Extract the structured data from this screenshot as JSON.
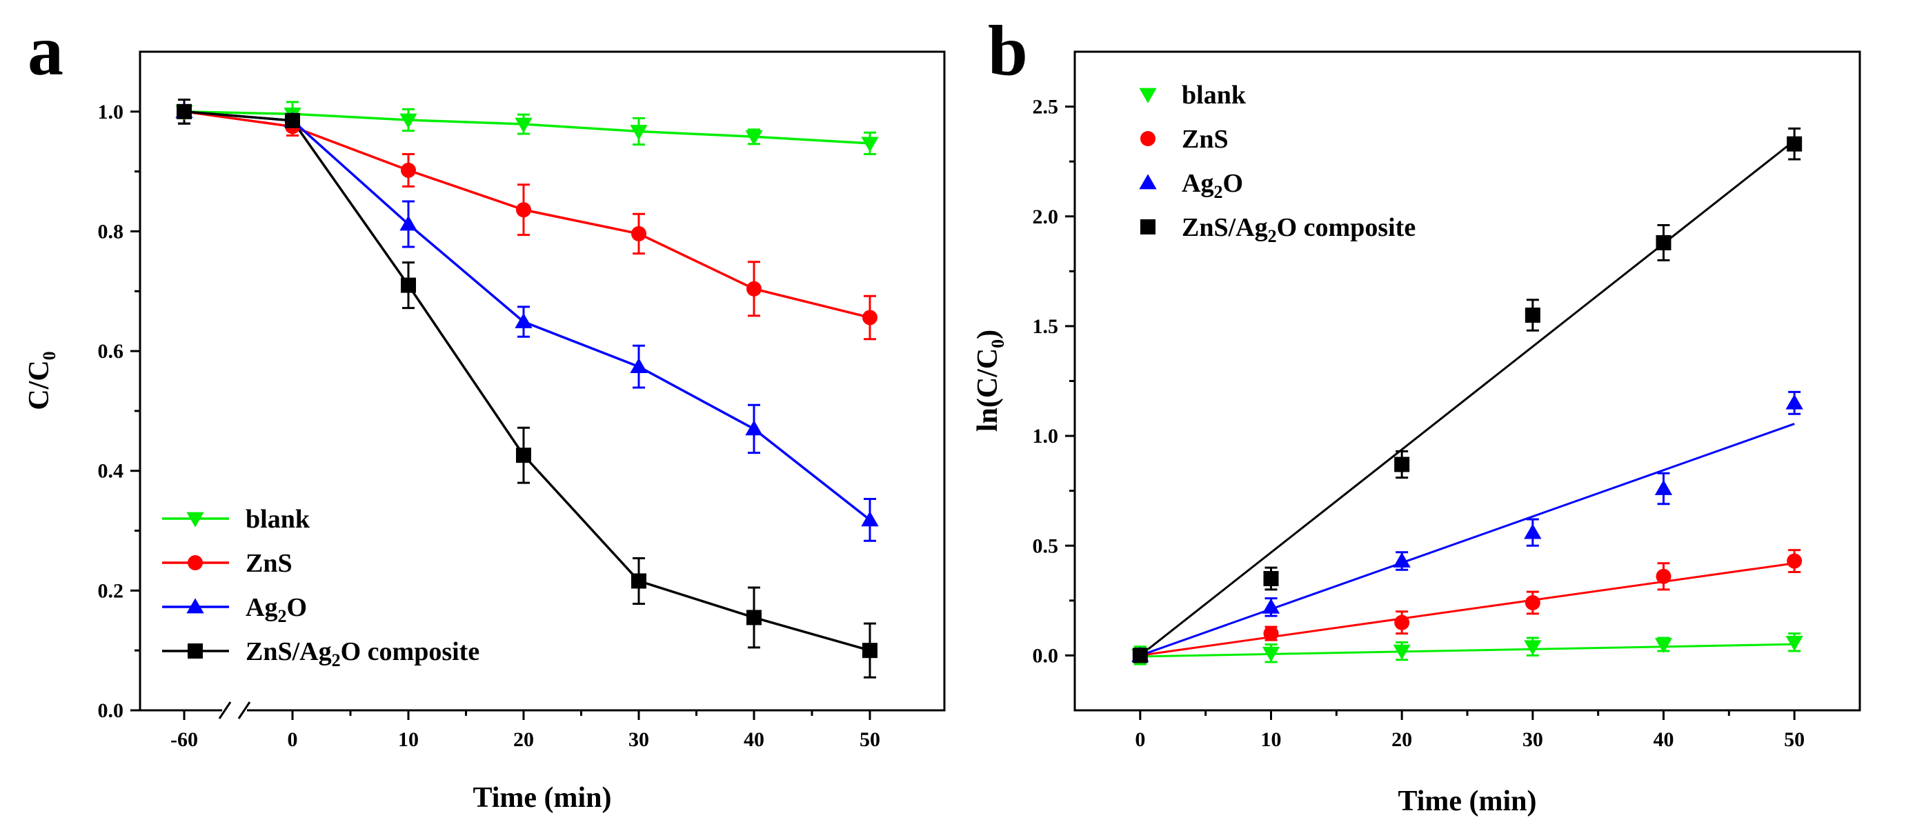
{
  "colors": {
    "blank": "#00ee00",
    "ZnS": "#ff0000",
    "Ag2O": "#0000ff",
    "composite": "#000000"
  },
  "chart_data": [
    {
      "panel": "a",
      "type": "line",
      "xlabel": "Time (min)",
      "ylabel_main": "C/C",
      "ylabel_sub": "0",
      "x_tick_labels": [
        "-60",
        "0",
        "10",
        "20",
        "30",
        "40",
        "50"
      ],
      "y_tick_labels": [
        "0.0",
        "0.2",
        "0.4",
        "0.6",
        "0.8",
        "1.0"
      ],
      "ylim": [
        0,
        1.1
      ],
      "xlim_note": "broken axis between -60 and 0",
      "x": [
        -60,
        0,
        10,
        20,
        30,
        40,
        50
      ],
      "legend_position": "bottom-left",
      "series": [
        {
          "key": "blank",
          "name": "blank",
          "marker": "triangle-down",
          "label_parts": [
            "blank"
          ],
          "values": [
            1.0,
            0.996,
            0.986,
            0.979,
            0.967,
            0.958,
            0.947
          ],
          "errors": [
            0.02,
            0.02,
            0.018,
            0.016,
            0.022,
            0.012,
            0.018
          ]
        },
        {
          "key": "ZnS",
          "name": "ZnS",
          "marker": "circle",
          "label_parts": [
            "ZnS"
          ],
          "values": [
            1.0,
            0.975,
            0.902,
            0.836,
            0.796,
            0.704,
            0.656
          ],
          "errors": [
            0.02,
            0.015,
            0.027,
            0.042,
            0.033,
            0.045,
            0.036
          ]
        },
        {
          "key": "Ag2O",
          "name": "Ag2O",
          "marker": "triangle-up",
          "label_parts": [
            "Ag",
            "2",
            "O"
          ],
          "values": [
            1.0,
            0.985,
            0.812,
            0.649,
            0.574,
            0.47,
            0.318
          ],
          "errors": [
            0.02,
            0.016,
            0.038,
            0.025,
            0.035,
            0.04,
            0.035
          ]
        },
        {
          "key": "composite",
          "name": "ZnS/Ag2O composite",
          "marker": "square",
          "label_parts": [
            "ZnS/Ag",
            "2",
            "O composite"
          ],
          "values": [
            1.0,
            0.985,
            0.71,
            0.426,
            0.216,
            0.155,
            0.1
          ],
          "errors": [
            0.02,
            0.016,
            0.038,
            0.046,
            0.038,
            0.05,
            0.045
          ]
        }
      ]
    },
    {
      "panel": "b",
      "type": "scatter",
      "xlabel": "Time (min)",
      "ylabel_main": "ln(C/C",
      "ylabel_sub": "0",
      "ylabel_tail": ")",
      "x_tick_labels": [
        "0",
        "10",
        "20",
        "30",
        "40",
        "50"
      ],
      "y_tick_labels": [
        "0.0",
        "0.5",
        "1.0",
        "1.5",
        "2.0",
        "2.5"
      ],
      "xlim": [
        -5,
        55
      ],
      "ylim": [
        -0.25,
        2.75
      ],
      "x": [
        0,
        10,
        20,
        30,
        40,
        50
      ],
      "legend_position": "top-left",
      "series": [
        {
          "key": "blank",
          "name": "blank",
          "marker": "triangle-down",
          "label_parts": [
            "blank"
          ],
          "values": [
            0.0,
            0.01,
            0.02,
            0.04,
            0.05,
            0.06
          ],
          "errors": [
            0.04,
            0.04,
            0.04,
            0.04,
            0.03,
            0.04
          ],
          "fit": [
            -0.005,
            0.051
          ]
        },
        {
          "key": "ZnS",
          "name": "ZnS",
          "marker": "circle",
          "label_parts": [
            "ZnS"
          ],
          "values": [
            0.0,
            0.1,
            0.15,
            0.24,
            0.36,
            0.43
          ],
          "errors": [
            0.03,
            0.03,
            0.05,
            0.05,
            0.06,
            0.05
          ],
          "fit": [
            0.0,
            0.42
          ]
        },
        {
          "key": "Ag2O",
          "name": "Ag2O",
          "marker": "triangle-up",
          "label_parts": [
            "Ag",
            "2",
            "O"
          ],
          "values": [
            0.0,
            0.22,
            0.43,
            0.56,
            0.76,
            1.15
          ],
          "errors": [
            0.03,
            0.04,
            0.04,
            0.06,
            0.07,
            0.05
          ],
          "fit": [
            0.0,
            1.055
          ]
        },
        {
          "key": "composite",
          "name": "ZnS/Ag2O composite",
          "marker": "square",
          "label_parts": [
            "ZnS/Ag",
            "2",
            "O composite"
          ],
          "values": [
            0.0,
            0.35,
            0.87,
            1.55,
            1.88,
            2.33
          ],
          "errors": [
            0.03,
            0.05,
            0.06,
            0.07,
            0.08,
            0.07
          ],
          "fit": [
            0.0,
            2.345
          ]
        }
      ]
    }
  ]
}
